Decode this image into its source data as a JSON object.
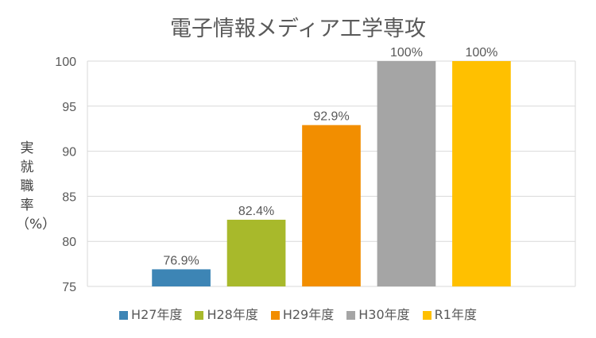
{
  "chart_data": {
    "type": "bar",
    "title": "電子情報メディア工学専攻",
    "ylabel": [
      "実",
      "就",
      "職",
      "率",
      "（%）"
    ],
    "xlabel": "",
    "ylim": [
      75,
      100
    ],
    "yticks": [
      "75",
      "80",
      "85",
      "90",
      "95",
      "100"
    ],
    "grid": true,
    "legend_position": "bottom",
    "categories": [
      "H27年度",
      "H28年度",
      "H29年度",
      "H30年度",
      "R1年度"
    ],
    "values": [
      76.9,
      82.4,
      92.9,
      100,
      100
    ],
    "data_labels": [
      "76.9%",
      "82.4%",
      "92.9%",
      "100%",
      "100%"
    ],
    "colors": [
      "#3d85b5",
      "#a8b92b",
      "#f28e00",
      "#a5a5a5",
      "#ffc000"
    ]
  }
}
